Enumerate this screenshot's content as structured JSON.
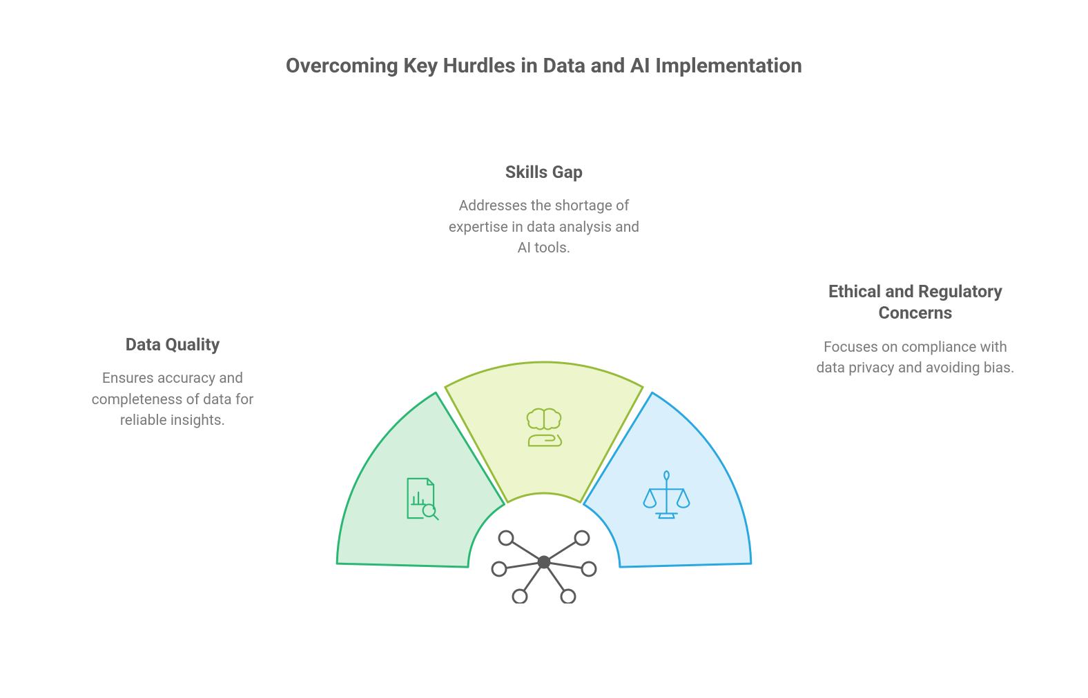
{
  "title": "Overcoming Key Hurdles in Data and AI Implementation",
  "segments": [
    {
      "title": "Data Quality",
      "description": "Ensures accuracy and completeness of data for reliable insights.",
      "fill_color": "#d4f0dc",
      "stroke_color": "#2bb673",
      "icon": "document-chart-magnify"
    },
    {
      "title": "Skills Gap",
      "description": "Addresses the shortage of expertise in data analysis and AI tools.",
      "fill_color": "#ecf5cc",
      "stroke_color": "#97bb3a",
      "icon": "brain-hand"
    },
    {
      "title": "Ethical and Regulatory Concerns",
      "description": "Focuses on compliance with data privacy and avoiding bias.",
      "fill_color": "#d9effb",
      "stroke_color": "#2aa7de",
      "icon": "scales"
    }
  ],
  "center_icon": "network-nodes",
  "center_icon_color": "#5a5a5a",
  "background_color": "#ffffff",
  "title_color": "#5a5a5a",
  "label_title_color": "#5a5a5a",
  "label_desc_color": "#7a7a7a",
  "segment_stroke_width": 3,
  "outer_radius": 300,
  "inner_radius": 110,
  "gap_deg": 3
}
